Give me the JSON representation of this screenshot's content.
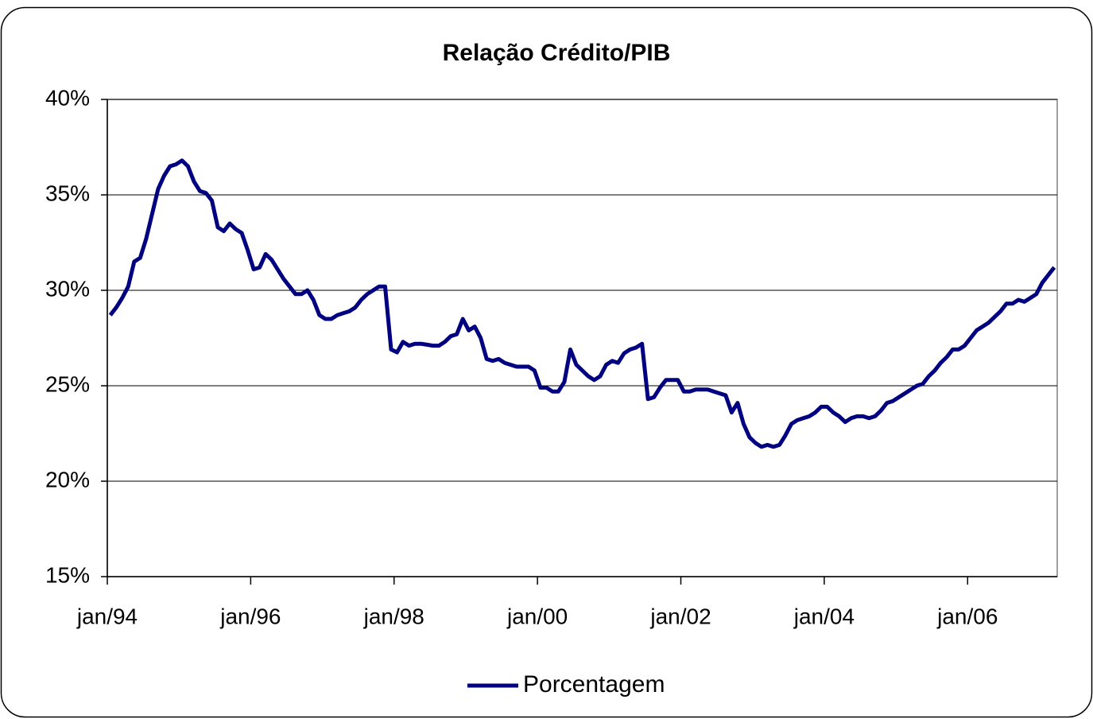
{
  "chart_data": {
    "type": "line",
    "title": "Relação Crédito/PIB",
    "categories": [
      "jan/94",
      null,
      null,
      null,
      null,
      null,
      null,
      null,
      null,
      null,
      null,
      null,
      null,
      null,
      null,
      null,
      null,
      null,
      null,
      null,
      null,
      null,
      null,
      null,
      "jan/96",
      null,
      null,
      null,
      null,
      null,
      null,
      null,
      null,
      null,
      null,
      null,
      null,
      null,
      null,
      null,
      null,
      null,
      null,
      null,
      null,
      null,
      null,
      null,
      "jan/98",
      null,
      null,
      null,
      null,
      null,
      null,
      null,
      null,
      null,
      null,
      null,
      null,
      null,
      null,
      null,
      null,
      null,
      null,
      null,
      null,
      null,
      null,
      null,
      "jan/00",
      null,
      null,
      null,
      null,
      null,
      null,
      null,
      null,
      null,
      null,
      null,
      null,
      null,
      null,
      null,
      null,
      null,
      null,
      null,
      null,
      null,
      null,
      null,
      "jan/02",
      null,
      null,
      null,
      null,
      null,
      null,
      null,
      null,
      null,
      null,
      null,
      null,
      null,
      null,
      null,
      null,
      null,
      null,
      null,
      null,
      null,
      null,
      null,
      "jan/04",
      null,
      null,
      null,
      null,
      null,
      null,
      null,
      null,
      null,
      null,
      null,
      null,
      null,
      null,
      null,
      null,
      null,
      null,
      null,
      null,
      null,
      null,
      null,
      "jan/06",
      null,
      null,
      null,
      null,
      null,
      null,
      null,
      null,
      null,
      null,
      null,
      null,
      null,
      null
    ],
    "series": [
      {
        "name": "Porcentagem",
        "color": "#000080",
        "values": [
          28.7,
          29.1,
          29.6,
          30.2,
          31.5,
          31.7,
          32.7,
          34.0,
          35.3,
          36.0,
          36.5,
          36.6,
          36.8,
          36.5,
          35.7,
          35.2,
          35.1,
          34.7,
          33.3,
          33.1,
          33.5,
          33.2,
          33.0,
          32.1,
          31.1,
          31.2,
          31.9,
          31.6,
          31.1,
          30.6,
          30.2,
          29.8,
          29.8,
          30.0,
          29.5,
          28.7,
          28.5,
          28.5,
          28.7,
          28.8,
          28.9,
          29.1,
          29.5,
          29.8,
          30.0,
          30.2,
          30.2,
          26.9,
          26.75,
          27.3,
          27.1,
          27.2,
          27.2,
          27.15,
          27.1,
          27.1,
          27.3,
          27.6,
          27.7,
          28.5,
          27.9,
          28.1,
          27.5,
          26.4,
          26.3,
          26.4,
          26.2,
          26.1,
          26.0,
          26.0,
          26.0,
          25.8,
          24.9,
          24.9,
          24.7,
          24.7,
          25.2,
          26.9,
          26.1,
          25.8,
          25.5,
          25.3,
          25.5,
          26.1,
          26.3,
          26.2,
          26.7,
          26.9,
          27.0,
          27.2,
          24.3,
          24.4,
          24.9,
          25.3,
          25.3,
          25.3,
          24.7,
          24.7,
          24.8,
          24.8,
          24.8,
          24.7,
          24.6,
          24.5,
          23.6,
          24.1,
          23.0,
          22.3,
          22.0,
          21.8,
          21.9,
          21.8,
          21.9,
          22.4,
          23.0,
          23.2,
          23.3,
          23.4,
          23.6,
          23.9,
          23.9,
          23.6,
          23.4,
          23.1,
          23.3,
          23.4,
          23.4,
          23.3,
          23.4,
          23.7,
          24.1,
          24.2,
          24.4,
          24.6,
          24.8,
          25.0,
          25.1,
          25.5,
          25.8,
          26.2,
          26.5,
          26.9,
          26.9,
          27.1,
          27.5,
          27.9,
          28.1,
          28.3,
          28.6,
          28.9,
          29.3,
          29.3,
          29.5,
          29.4,
          29.6,
          29.8,
          30.4,
          30.8,
          31.2
        ]
      }
    ],
    "ylim": [
      15,
      40
    ],
    "yticks": [
      {
        "value": 15,
        "label": "15%"
      },
      {
        "value": 20,
        "label": "20%"
      },
      {
        "value": 25,
        "label": "25%"
      },
      {
        "value": 30,
        "label": "30%"
      },
      {
        "value": 35,
        "label": "35%"
      },
      {
        "value": 40,
        "label": "40%"
      }
    ],
    "grid": true,
    "legend": "bottom"
  }
}
